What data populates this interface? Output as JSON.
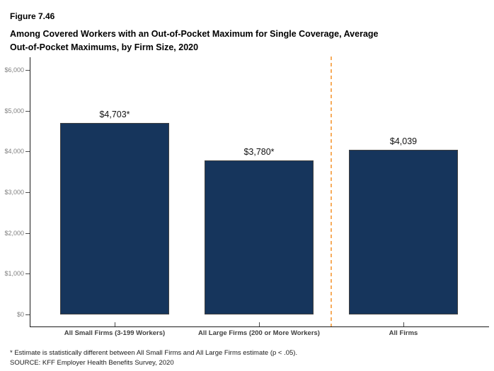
{
  "header": {
    "figure_label": "Figure 7.46",
    "title_line1": "Among Covered Workers with an Out-of-Pocket Maximum for Single Coverage, Average",
    "title_line2": "Out-of-Pocket Maximums, by Firm Size, 2020"
  },
  "chart_data": {
    "type": "bar",
    "title": "Among Covered Workers with an Out-of-Pocket Maximum for Single Coverage, Average Out-of-Pocket Maximums, by Firm Size, 2020",
    "categories": [
      "All Small Firms (3-199 Workers)",
      "All Large Firms (200 or More Workers)",
      "All Firms"
    ],
    "values": [
      4703,
      3780,
      4039
    ],
    "value_labels": [
      "$4,703*",
      "$3,780*",
      "$4,039"
    ],
    "xlabel": "",
    "ylabel": "",
    "ylim": [
      0,
      6000
    ],
    "y_ticks": [
      {
        "value": 0,
        "label": "$0"
      },
      {
        "value": 1000,
        "label": "$1,000"
      },
      {
        "value": 2000,
        "label": "$2,000"
      },
      {
        "value": 3000,
        "label": "$3,000"
      },
      {
        "value": 4000,
        "label": "$4,000"
      },
      {
        "value": 5000,
        "label": "$5,000"
      },
      {
        "value": 6000,
        "label": "$6,000"
      }
    ],
    "grid": false,
    "legend": false,
    "bar_color": "#16355C",
    "bar_border_color": "#404040",
    "separator_line": {
      "position": "between All Large Firms (200 or More Workers) and All Firms",
      "style": "dashed",
      "color": "#F7AC5C"
    }
  },
  "footnotes": {
    "note": "* Estimate is statistically different between All Small Firms and All Large Firms estimate (p < .05).",
    "source": "SOURCE: KFF Employer Health Benefits Survey, 2020"
  }
}
